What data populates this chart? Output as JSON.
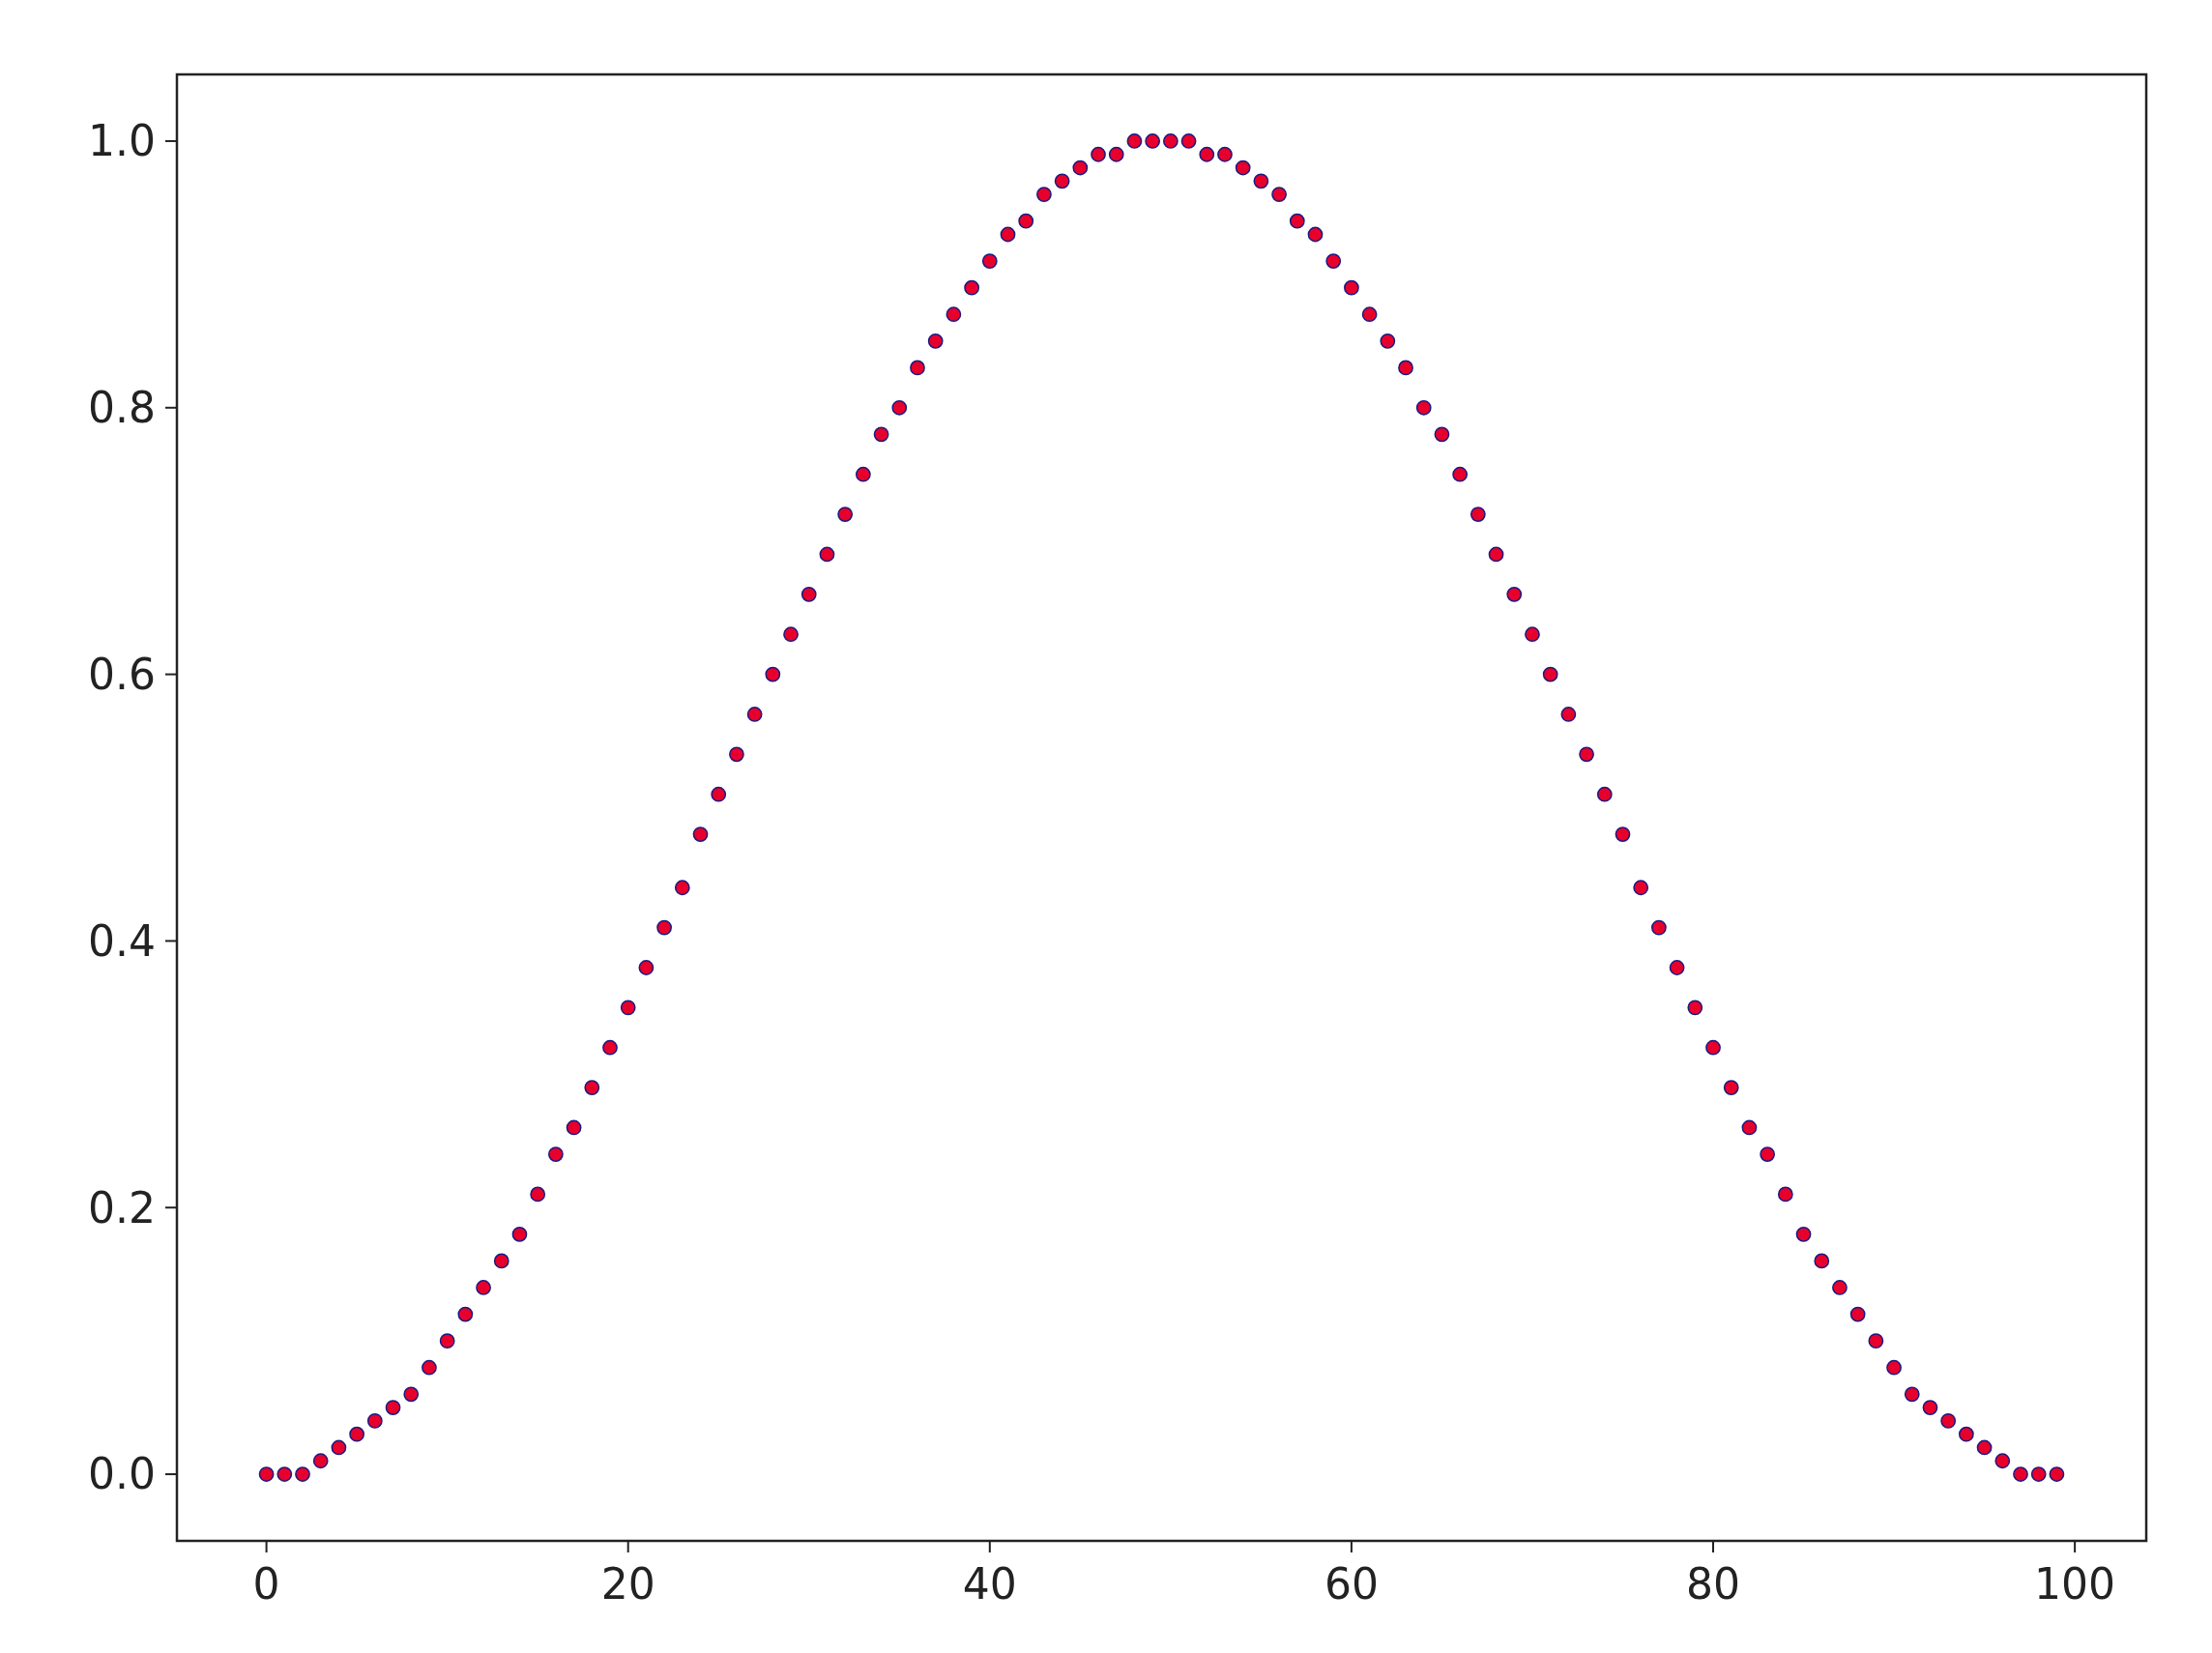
{
  "chart_data": {
    "type": "scatter",
    "marker": "circle",
    "grid": false,
    "xlim": [
      -4.95,
      103.95
    ],
    "ylim": [
      -0.05,
      1.05
    ],
    "xticks": [
      0,
      20,
      40,
      60,
      80,
      100
    ],
    "yticks": [
      {
        "value": 0,
        "label": "0.0"
      },
      {
        "value": 0.2,
        "label": "0.2"
      },
      {
        "value": 0.4,
        "label": "0.4"
      },
      {
        "value": 0.6,
        "label": "0.6"
      },
      {
        "value": 0.8,
        "label": "0.8"
      },
      {
        "value": 1,
        "label": "1.0"
      }
    ],
    "series": [
      {
        "color": "#e8002d",
        "x": [
          0,
          1,
          2,
          3,
          4,
          5,
          6,
          7,
          8,
          9,
          10,
          11,
          12,
          13,
          14,
          15,
          16,
          17,
          18,
          19,
          20,
          21,
          22,
          23,
          24,
          25,
          26,
          27,
          28,
          29,
          30,
          31,
          32,
          33,
          34,
          35,
          36,
          37,
          38,
          39,
          40,
          41,
          42,
          43,
          44,
          45,
          46,
          47,
          48,
          49,
          50,
          51,
          52,
          53,
          54,
          55,
          56,
          57,
          58,
          59,
          60,
          61,
          62,
          63,
          64,
          65,
          66,
          67,
          68,
          69,
          70,
          71,
          72,
          73,
          74,
          75,
          76,
          77,
          78,
          79,
          80,
          81,
          82,
          83,
          84,
          85,
          86,
          87,
          88,
          89,
          90,
          91,
          92,
          93,
          94,
          95,
          96,
          97,
          98,
          99
        ],
        "values": [
          0,
          0,
          0,
          0.01,
          0.02,
          0.03,
          0.04,
          0.05,
          0.06,
          0.08,
          0.1,
          0.12,
          0.14,
          0.16,
          0.18,
          0.21,
          0.24,
          0.26,
          0.29,
          0.32,
          0.35,
          0.38,
          0.41,
          0.44,
          0.48,
          0.51,
          0.54,
          0.57,
          0.6,
          0.63,
          0.66,
          0.69,
          0.72,
          0.75,
          0.78,
          0.8,
          0.83,
          0.85,
          0.87,
          0.89,
          0.91,
          0.93,
          0.94,
          0.96,
          0.97,
          0.98,
          0.99,
          0.99,
          1,
          1,
          1,
          1,
          0.99,
          0.99,
          0.98,
          0.97,
          0.96,
          0.94,
          0.93,
          0.91,
          0.89,
          0.87,
          0.85,
          0.83,
          0.8,
          0.78,
          0.75,
          0.72,
          0.69,
          0.66,
          0.63,
          0.6,
          0.57,
          0.54,
          0.51,
          0.48,
          0.44,
          0.41,
          0.38,
          0.35,
          0.32,
          0.29,
          0.26,
          0.24,
          0.21,
          0.18,
          0.16,
          0.14,
          0.12,
          0.1,
          0.08,
          0.06,
          0.05,
          0.04,
          0.03,
          0.02,
          0.01,
          0,
          0,
          0
        ]
      }
    ]
  }
}
